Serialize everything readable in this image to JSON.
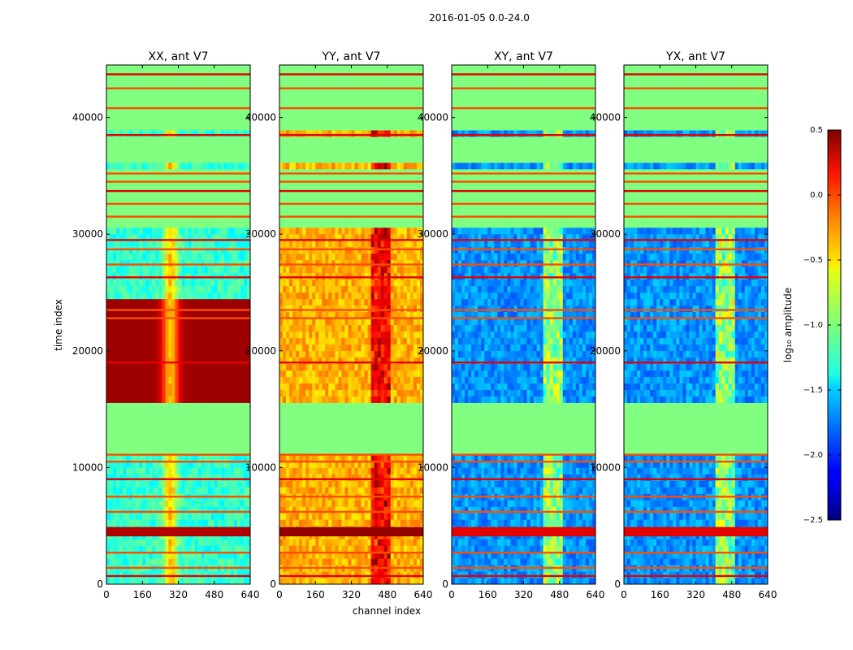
{
  "figure": {
    "suptitle": "2016-01-05 0.0-24.0",
    "xlabel": "channel index",
    "ylabel": "time index"
  },
  "chart_data": {
    "type": "heatmap",
    "colormap": "jet",
    "x_ticks": [
      "0",
      "160",
      "320",
      "480",
      "640"
    ],
    "y_ticks": [
      "0",
      "10000",
      "20000",
      "30000",
      "40000"
    ],
    "xlim": [
      0,
      640
    ],
    "ylim": [
      0,
      44500
    ],
    "panels": [
      {
        "title": "XX, ant V7",
        "base": 0.42,
        "mid_peak": 0.68,
        "rfi_peak": 0.0,
        "flag": 0.82,
        "stripe": 0.9,
        "fill": 0.8
      },
      {
        "title": "YY, ant V7",
        "base": 0.7,
        "mid_peak": 0.0,
        "rfi_peak": 0.95,
        "flag": 0.68,
        "stripe": 0.9,
        "fill": 0.8
      },
      {
        "title": "XY, ant V7",
        "base": 0.27,
        "mid_peak": 0.0,
        "rfi_peak": 0.62,
        "flag": 0.95,
        "stripe": 0.9,
        "fill": 0.8
      },
      {
        "title": "YX, ant V7",
        "base": 0.27,
        "mid_peak": 0.0,
        "rfi_peak": 0.62,
        "flag": 0.95,
        "stripe": 0.9,
        "fill": 0.8
      }
    ],
    "flagged_ranges": [
      [
        11300,
        15300
      ],
      [
        30600,
        35800
      ],
      [
        36000,
        38600
      ],
      [
        39200,
        44500
      ]
    ],
    "colorbar": {
      "label": "log₁₀ amplitude",
      "min": -2.5,
      "max": 0.5,
      "ticks": [
        "−2.5",
        "−2.0",
        "−1.5",
        "−1.0",
        "−0.5",
        "0.0",
        "0.5"
      ]
    }
  }
}
